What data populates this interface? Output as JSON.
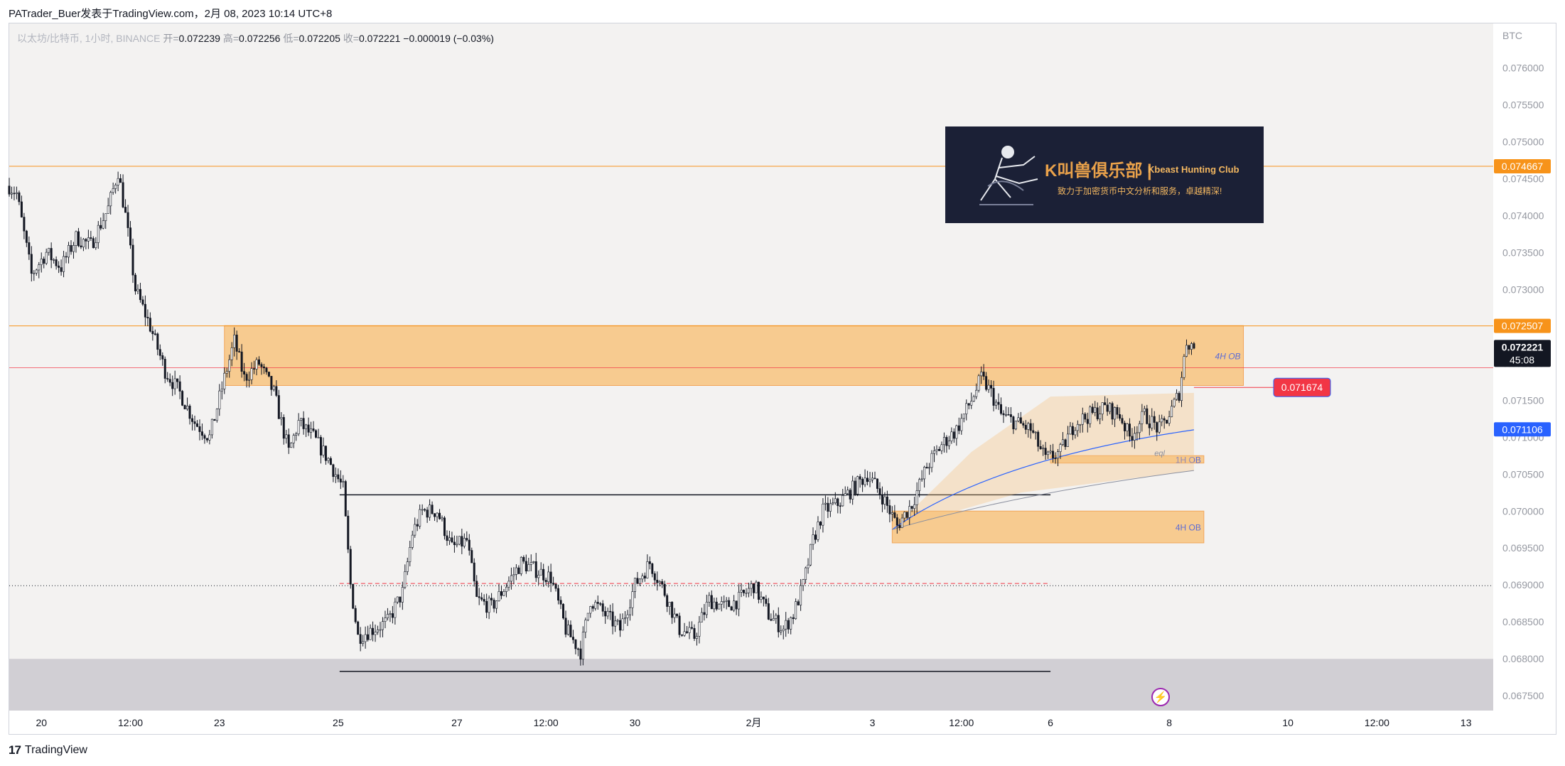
{
  "header": {
    "publish_line": "PATrader_Buer发表于TradingView.com，2月 08, 2023 10:14 UTC+8"
  },
  "legend": {
    "symbol": "以太坊/比特币, 1小时, BINANCE",
    "open_label": "开=",
    "open": "0.072239",
    "high_label": "高=",
    "high": "0.072256",
    "low_label": "低=",
    "low": "0.072205",
    "close_label": "收=",
    "close": "0.072221",
    "change": "−0.000019 (−0.03%)"
  },
  "currency": "BTC",
  "footer": {
    "logo_mark": "17",
    "brand": "TradingView"
  },
  "banner": {
    "title": "K叫兽俱乐部 |",
    "club": "Kbeast Hunting Club",
    "subtitle": "致力于加密货币中文分析和服务，卓越精深!"
  },
  "colors": {
    "up": "#ffffff",
    "down": "#131722",
    "ob_fill": "#f7c47f",
    "orange": "#f7931a",
    "red": "#f23645",
    "blue": "#2962ff",
    "last_price_bg": "#131722"
  },
  "chart_data": {
    "type": "candlestick",
    "symbol": "ETH/BTC",
    "interval": "1h",
    "y_range": [
      0.0673,
      0.0766
    ],
    "y_ticks": [
      "0.076000",
      "0.075500",
      "0.075000",
      "0.074500",
      "0.074000",
      "0.073500",
      "0.073000",
      "0.072500",
      "0.072000",
      "0.071500",
      "0.071000",
      "0.070500",
      "0.070000",
      "0.069500",
      "0.069000",
      "0.068500",
      "0.068000",
      "0.067500"
    ],
    "x_range": [
      "2023-01-19T11:00",
      "2023-02-13T11:00"
    ],
    "x_ticks": [
      {
        "label": "20",
        "t": "2023-01-20T00:00"
      },
      {
        "label": "12:00",
        "t": "2023-01-21T12:00"
      },
      {
        "label": "23",
        "t": "2023-01-23T00:00"
      },
      {
        "label": "25",
        "t": "2023-01-25T00:00"
      },
      {
        "label": "27",
        "t": "2023-01-27T00:00"
      },
      {
        "label": "12:00",
        "t": "2023-01-28T12:00"
      },
      {
        "label": "30",
        "t": "2023-01-30T00:00"
      },
      {
        "label": "2月",
        "t": "2023-02-01T00:00"
      },
      {
        "label": "3",
        "t": "2023-02-03T00:00"
      },
      {
        "label": "12:00",
        "t": "2023-02-04T12:00"
      },
      {
        "label": "6",
        "t": "2023-02-06T00:00"
      },
      {
        "label": "8",
        "t": "2023-02-08T00:00"
      },
      {
        "label": "10",
        "t": "2023-02-10T00:00"
      },
      {
        "label": "12:00",
        "t": "2023-02-11T12:00"
      },
      {
        "label": "13",
        "t": "2023-02-13T00:00"
      }
    ],
    "price_path": [
      [
        "2023-01-19T11:00",
        0.0744
      ],
      [
        "2023-01-19T14:00",
        0.0743
      ],
      [
        "2023-01-19T20:00",
        0.0732
      ],
      [
        "2023-01-20T02:00",
        0.0735
      ],
      [
        "2023-01-20T08:00",
        0.0733
      ],
      [
        "2023-01-20T14:00",
        0.0737
      ],
      [
        "2023-01-20T20:00",
        0.0736
      ],
      [
        "2023-01-21T03:00",
        0.0741
      ],
      [
        "2023-01-21T07:00",
        0.0746
      ],
      [
        "2023-01-21T10:00",
        0.074
      ],
      [
        "2023-01-21T14:00",
        0.073
      ],
      [
        "2023-01-21T20:00",
        0.0725
      ],
      [
        "2023-01-22T02:00",
        0.0719
      ],
      [
        "2023-01-22T08:00",
        0.0716
      ],
      [
        "2023-01-22T14:00",
        0.0712
      ],
      [
        "2023-01-22T20:00",
        0.071
      ],
      [
        "2023-01-23T02:00",
        0.0718
      ],
      [
        "2023-01-23T06:00",
        0.0723
      ],
      [
        "2023-01-23T10:00",
        0.0718
      ],
      [
        "2023-01-23T16:00",
        0.072
      ],
      [
        "2023-01-23T22:00",
        0.0716
      ],
      [
        "2023-01-24T04:00",
        0.0708
      ],
      [
        "2023-01-24T08:00",
        0.0712
      ],
      [
        "2023-01-24T14:00",
        0.071
      ],
      [
        "2023-01-24T20:00",
        0.0707
      ],
      [
        "2023-01-25T02:00",
        0.0703
      ],
      [
        "2023-01-25T05:00",
        0.069
      ],
      [
        "2023-01-25T08:00",
        0.0683
      ],
      [
        "2023-01-25T14:00",
        0.0684
      ],
      [
        "2023-01-25T20:00",
        0.0685
      ],
      [
        "2023-01-26T02:00",
        0.0689
      ],
      [
        "2023-01-26T06:00",
        0.0697
      ],
      [
        "2023-01-26T10:00",
        0.07
      ],
      [
        "2023-01-26T16:00",
        0.07
      ],
      [
        "2023-01-26T22:00",
        0.0695
      ],
      [
        "2023-01-27T04:00",
        0.0696
      ],
      [
        "2023-01-27T08:00",
        0.0688
      ],
      [
        "2023-01-27T14:00",
        0.0687
      ],
      [
        "2023-01-27T20:00",
        0.069
      ],
      [
        "2023-01-28T02:00",
        0.0693
      ],
      [
        "2023-01-28T08:00",
        0.0692
      ],
      [
        "2023-01-28T14:00",
        0.0691
      ],
      [
        "2023-01-28T20:00",
        0.0684
      ],
      [
        "2023-01-29T02:00",
        0.0681
      ],
      [
        "2023-01-29T06:00",
        0.0688
      ],
      [
        "2023-01-29T12:00",
        0.0686
      ],
      [
        "2023-01-29T18:00",
        0.0684
      ],
      [
        "2023-01-30T00:00",
        0.069
      ],
      [
        "2023-01-30T06:00",
        0.0693
      ],
      [
        "2023-01-30T12:00",
        0.0689
      ],
      [
        "2023-01-30T18:00",
        0.0684
      ],
      [
        "2023-01-31T00:00",
        0.0683
      ],
      [
        "2023-01-31T06:00",
        0.0688
      ],
      [
        "2023-01-31T12:00",
        0.0687
      ],
      [
        "2023-01-31T18:00",
        0.0688
      ],
      [
        "2023-02-01T00:00",
        0.069
      ],
      [
        "2023-02-01T06:00",
        0.0686
      ],
      [
        "2023-02-01T12:00",
        0.0684
      ],
      [
        "2023-02-01T16:00",
        0.0686
      ],
      [
        "2023-02-01T20:00",
        0.069
      ],
      [
        "2023-02-02T00:00",
        0.0696
      ],
      [
        "2023-02-02T04:00",
        0.07
      ],
      [
        "2023-02-02T10:00",
        0.0701
      ],
      [
        "2023-02-02T16:00",
        0.0703
      ],
      [
        "2023-02-02T22:00",
        0.0705
      ],
      [
        "2023-02-03T04:00",
        0.0702
      ],
      [
        "2023-02-03T10:00",
        0.0698
      ],
      [
        "2023-02-03T16:00",
        0.0701
      ],
      [
        "2023-02-03T22:00",
        0.0706
      ],
      [
        "2023-02-04T04:00",
        0.0709
      ],
      [
        "2023-02-04T10:00",
        0.0711
      ],
      [
        "2023-02-04T16:00",
        0.0715
      ],
      [
        "2023-02-04T20:00",
        0.0718
      ],
      [
        "2023-02-05T00:00",
        0.0716
      ],
      [
        "2023-02-05T04:00",
        0.0713
      ],
      [
        "2023-02-05T10:00",
        0.0712
      ],
      [
        "2023-02-05T16:00",
        0.0711
      ],
      [
        "2023-02-05T22:00",
        0.0707
      ],
      [
        "2023-02-06T04:00",
        0.0708
      ],
      [
        "2023-02-06T10:00",
        0.0712
      ],
      [
        "2023-02-06T16:00",
        0.0713
      ],
      [
        "2023-02-06T22:00",
        0.0714
      ],
      [
        "2023-02-07T04:00",
        0.0713
      ],
      [
        "2023-02-07T08:00",
        0.071
      ],
      [
        "2023-02-07T14:00",
        0.0713
      ],
      [
        "2023-02-07T20:00",
        0.0711
      ],
      [
        "2023-02-08T00:00",
        0.0713
      ],
      [
        "2023-02-08T04:00",
        0.0716
      ],
      [
        "2023-02-08T07:00",
        0.0723
      ],
      [
        "2023-02-08T10:00",
        0.07222
      ]
    ],
    "levels": [
      {
        "price": 0.074667,
        "label": "0.074667",
        "color": "#f7931a"
      },
      {
        "price": 0.072507,
        "label": "0.072507",
        "color": "#f7931a"
      },
      {
        "price": 0.072221,
        "label": "0.072221",
        "timer": "45:08",
        "color": "#131722"
      },
      {
        "price": 0.071106,
        "label": "0.071106",
        "color": "#2962ff"
      }
    ],
    "order_blocks": [
      {
        "name": "4H OB",
        "top": 0.07251,
        "bottom": 0.0717,
        "from": "2023-01-23T02:00",
        "to": "2023-02-09T06:00"
      },
      {
        "name": "1H OB",
        "top": 0.07075,
        "bottom": 0.07065,
        "from": "2023-02-06T00:00",
        "to": "2023-02-08T14:00"
      },
      {
        "name": "4H OB",
        "top": 0.07,
        "bottom": 0.06957,
        "from": "2023-02-03T08:00",
        "to": "2023-02-08T14:00"
      }
    ],
    "range": {
      "top": 0.07022,
      "bottom": 0.06783,
      "mid": 0.06902,
      "from": "2023-01-25T00:00",
      "to": "2023-02-06T00:00"
    },
    "demand_zone": {
      "top": 0.068,
      "bottom": 0.0673
    },
    "callout": {
      "price": 0.071674,
      "label": "0.071674"
    },
    "eql_label": "eql",
    "dotted_level": 0.06899
  }
}
